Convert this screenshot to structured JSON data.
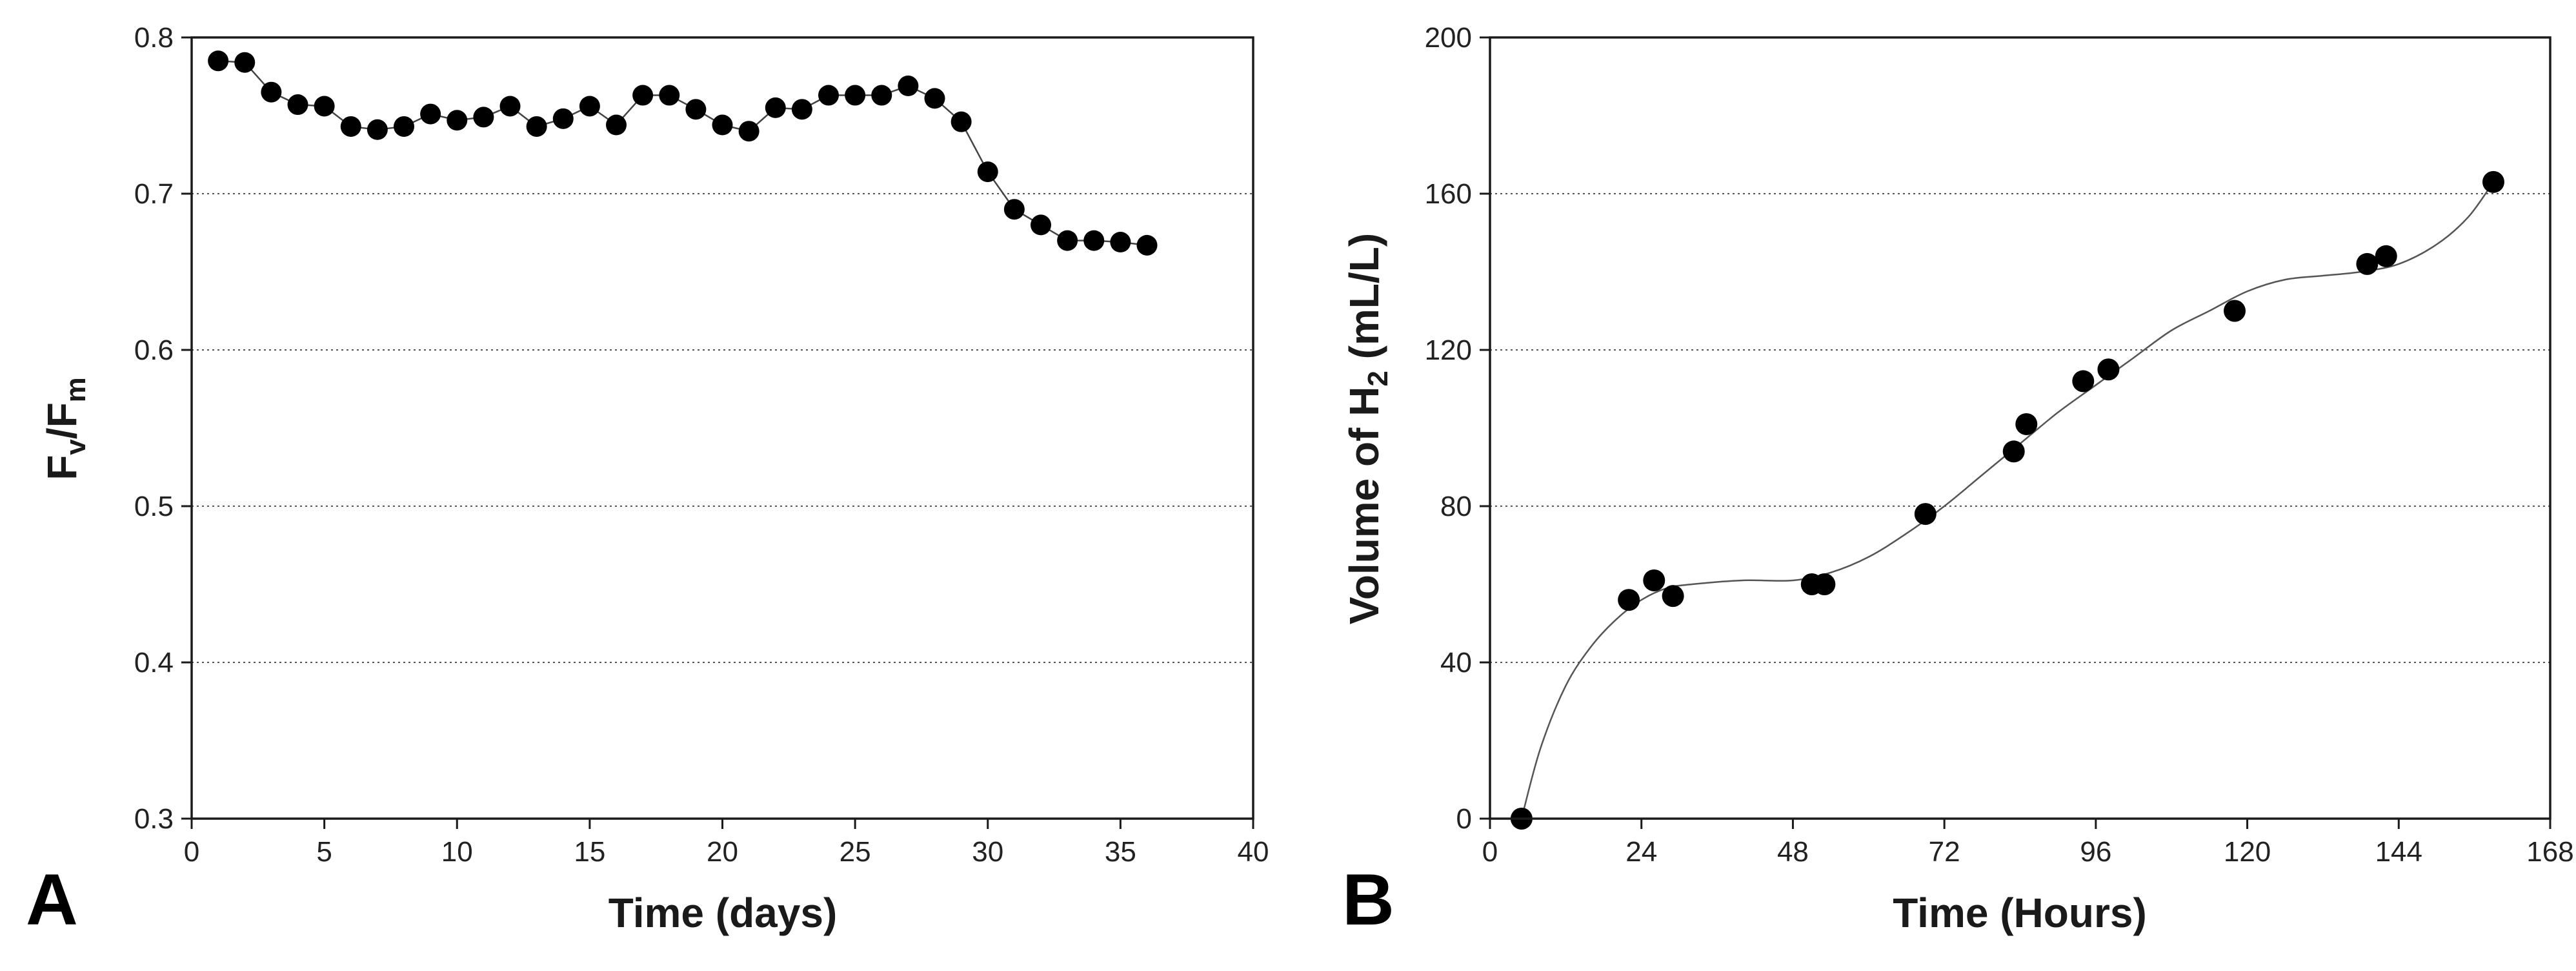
{
  "chart_data": [
    {
      "panel_label": "A",
      "type": "line",
      "title": "",
      "xlabel": "Time (days)",
      "ylabel": {
        "main": "F",
        "sub1": "v",
        "sep": "/F",
        "sub2": "m"
      },
      "xlim": [
        0,
        40
      ],
      "ylim": [
        0.3,
        0.8
      ],
      "xticks": [
        0,
        5,
        10,
        15,
        20,
        25,
        30,
        35,
        40
      ],
      "yticks": [
        0.3,
        0.4,
        0.5,
        0.6,
        0.7,
        0.8
      ],
      "xtick_labels": [
        "0",
        "5",
        "10",
        "15",
        "20",
        "25",
        "30",
        "35",
        "40"
      ],
      "ytick_labels": [
        "0.3",
        "0.4",
        "0.5",
        "0.6",
        "0.7",
        "0.8"
      ],
      "grid": "horizontal dotted",
      "series": [
        {
          "name": "Fv/Fm",
          "x": [
            1,
            2,
            3,
            4,
            5,
            6,
            7,
            8,
            9,
            10,
            11,
            12,
            13,
            14,
            15,
            16,
            17,
            18,
            19,
            20,
            21,
            22,
            23,
            24,
            25,
            26,
            27,
            28,
            29,
            30,
            31,
            32,
            33,
            34,
            35,
            36
          ],
          "y": [
            0.785,
            0.784,
            0.765,
            0.757,
            0.756,
            0.743,
            0.741,
            0.743,
            0.751,
            0.747,
            0.749,
            0.756,
            0.743,
            0.748,
            0.756,
            0.744,
            0.763,
            0.763,
            0.754,
            0.744,
            0.74,
            0.755,
            0.754,
            0.763,
            0.763,
            0.763,
            0.769,
            0.761,
            0.746,
            0.714,
            0.69,
            0.68,
            0.67,
            0.67,
            0.669,
            0.667
          ]
        }
      ]
    },
    {
      "panel_label": "B",
      "type": "scatter",
      "title": "",
      "xlabel": "Time (Hours)",
      "ylabel": {
        "main": "Volume of H",
        "sub": "2",
        "tail": " (mL/L)"
      },
      "xlim": [
        0,
        168
      ],
      "ylim": [
        0,
        200
      ],
      "xticks": [
        0,
        24,
        48,
        72,
        96,
        120,
        144,
        168
      ],
      "yticks": [
        0,
        40,
        80,
        120,
        160,
        200
      ],
      "xtick_labels": [
        "0",
        "24",
        "48",
        "72",
        "96",
        "120",
        "144",
        "168"
      ],
      "ytick_labels": [
        "0",
        "40",
        "80",
        "120",
        "160",
        "200"
      ],
      "grid": "horizontal dotted",
      "series": [
        {
          "name": "Volume of H2",
          "x": [
            5,
            22,
            26,
            29,
            51,
            53,
            69,
            83,
            85,
            94,
            98,
            118,
            139,
            142,
            159
          ],
          "y": [
            0,
            56,
            61,
            57,
            60,
            60,
            78,
            94,
            101,
            112,
            115,
            130,
            142,
            144,
            163
          ]
        }
      ],
      "fit_curve": {
        "x": [
          5,
          8,
          12,
          16,
          20,
          24,
          28,
          32,
          40,
          48,
          54,
          60,
          66,
          72,
          78,
          84,
          90,
          96,
          102,
          108,
          114,
          120,
          126,
          132,
          138,
          144,
          150,
          155,
          159
        ],
        "y": [
          0,
          18,
          34,
          44,
          51,
          56,
          59,
          60,
          61,
          61,
          63,
          67,
          73,
          80,
          88,
          96,
          104,
          111,
          118,
          125,
          130,
          135,
          138,
          139,
          140,
          142,
          147,
          154,
          163
        ]
      }
    }
  ]
}
